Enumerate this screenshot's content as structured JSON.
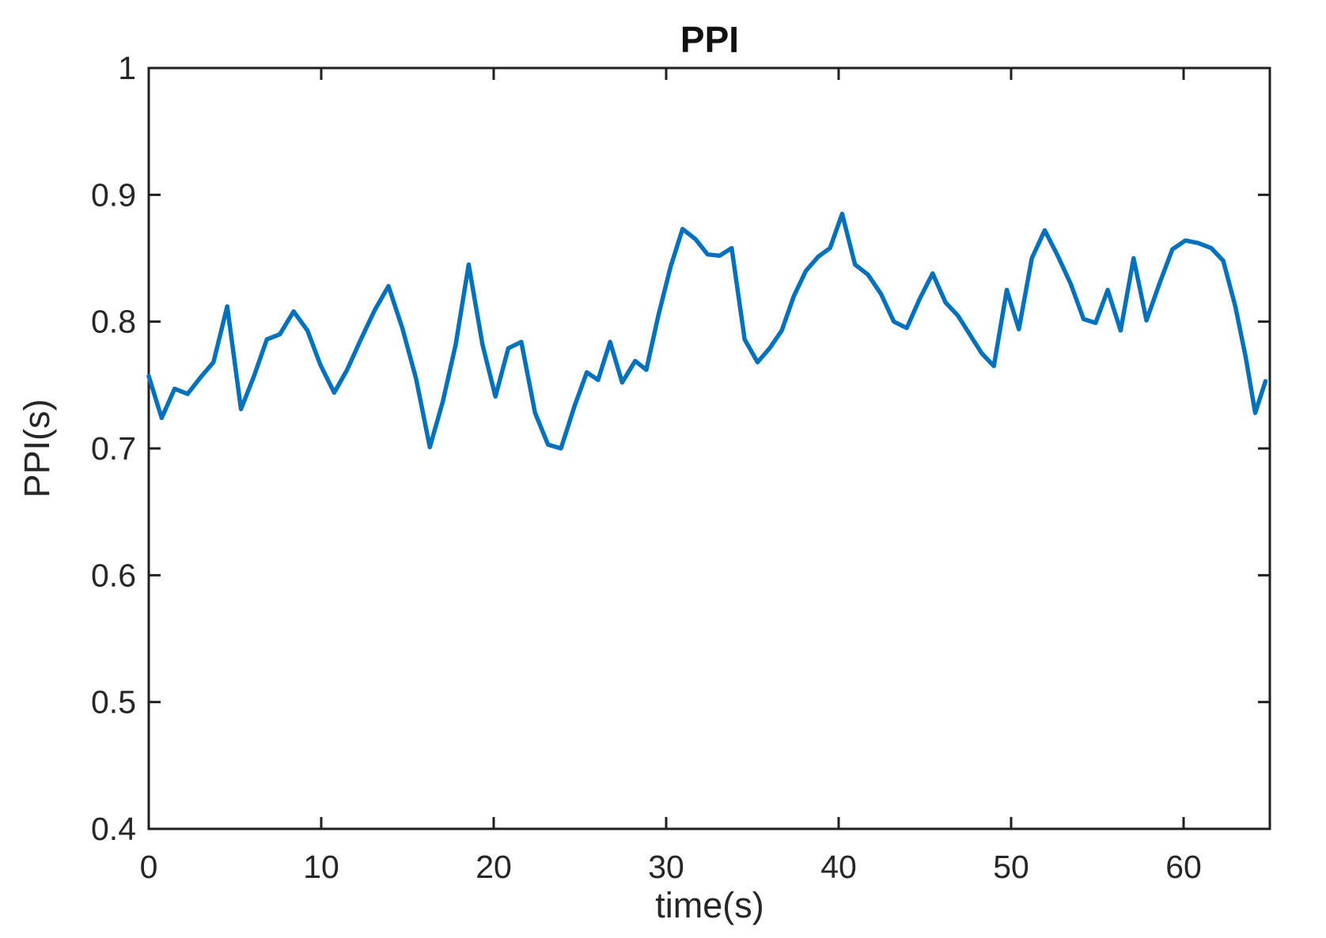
{
  "figure": {
    "background": "#ffffff"
  },
  "chart_data": {
    "type": "line",
    "title": "PPI",
    "xlabel": "time(s)",
    "ylabel": "PPI(s)",
    "xlim": [
      0,
      65
    ],
    "ylim": [
      0.4,
      1.0
    ],
    "xticks": [
      0,
      10,
      20,
      30,
      40,
      50,
      60
    ],
    "yticks": [
      0.4,
      0.5,
      0.6,
      0.7,
      0.8,
      0.9,
      1
    ],
    "grid": false,
    "box": true,
    "tick_direction": "in",
    "legend": "none",
    "line_color": "#0072BD",
    "line_width": 5.5,
    "axis_color": "#1f1f1f",
    "tick_label_color": "#262626",
    "background": "#ffffff",
    "series": [
      {
        "name": "PPI",
        "x": [
          0,
          0.75,
          1.5,
          2.25,
          3.0,
          3.75,
          4.55,
          5.35,
          6.1,
          6.85,
          7.6,
          8.4,
          9.2,
          9.95,
          10.75,
          11.5,
          12.3,
          13.1,
          13.9,
          14.7,
          15.5,
          16.3,
          17.05,
          17.8,
          18.55,
          19.35,
          20.1,
          20.85,
          21.6,
          22.4,
          23.15,
          23.9,
          24.7,
          25.4,
          26.05,
          26.75,
          27.45,
          28.2,
          28.85,
          29.55,
          30.25,
          30.95,
          31.7,
          32.4,
          33.1,
          33.8,
          34.55,
          35.3,
          36.0,
          36.7,
          37.4,
          38.1,
          38.8,
          39.5,
          40.2,
          40.95,
          41.7,
          42.45,
          43.2,
          43.95,
          44.7,
          45.45,
          46.2,
          46.9,
          47.6,
          48.3,
          49.0,
          49.75,
          50.45,
          51.2,
          51.95,
          52.7,
          53.45,
          54.2,
          54.9,
          55.6,
          56.35,
          57.1,
          57.85,
          58.6,
          59.35,
          60.1,
          60.85,
          61.6,
          62.3,
          63.0,
          63.6,
          64.15,
          64.75
        ],
        "y": [
          0.757,
          0.724,
          0.747,
          0.743,
          0.756,
          0.768,
          0.812,
          0.731,
          0.757,
          0.786,
          0.79,
          0.808,
          0.793,
          0.766,
          0.744,
          0.762,
          0.786,
          0.809,
          0.828,
          0.795,
          0.755,
          0.701,
          0.737,
          0.782,
          0.845,
          0.782,
          0.741,
          0.779,
          0.784,
          0.728,
          0.703,
          0.7,
          0.734,
          0.76,
          0.754,
          0.784,
          0.752,
          0.769,
          0.762,
          0.805,
          0.843,
          0.873,
          0.865,
          0.853,
          0.852,
          0.858,
          0.786,
          0.768,
          0.779,
          0.793,
          0.82,
          0.84,
          0.851,
          0.858,
          0.885,
          0.845,
          0.837,
          0.822,
          0.8,
          0.795,
          0.818,
          0.838,
          0.815,
          0.805,
          0.79,
          0.775,
          0.765,
          0.825,
          0.794,
          0.85,
          0.872,
          0.852,
          0.83,
          0.802,
          0.799,
          0.825,
          0.793,
          0.85,
          0.801,
          0.83,
          0.857,
          0.864,
          0.862,
          0.858,
          0.848,
          0.812,
          0.772,
          0.728,
          0.753
        ]
      }
    ]
  }
}
